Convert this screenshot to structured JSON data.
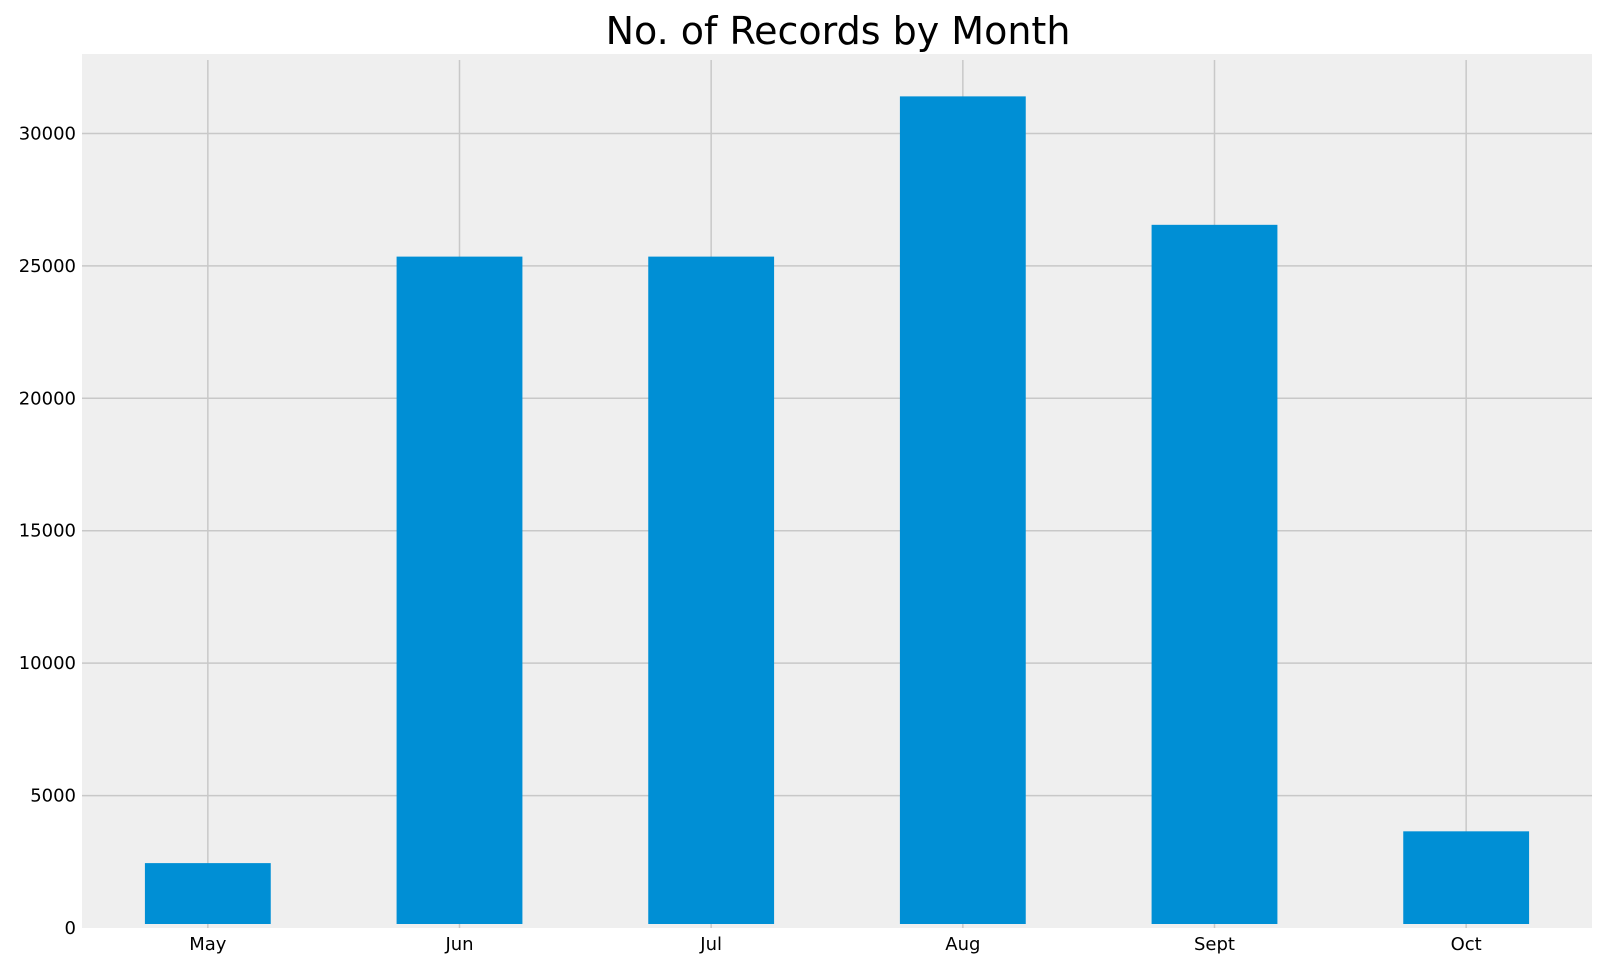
{
  "chart_data": {
    "type": "bar",
    "title": "No. of Records by Month",
    "categories": [
      "May",
      "Jun",
      "Jul",
      "Aug",
      "Sept",
      "Oct"
    ],
    "values": [
      2450,
      25350,
      25350,
      31400,
      26550,
      3650
    ],
    "xlabel": "",
    "ylabel": "",
    "ylim": [
      0,
      33000
    ],
    "yticks": [
      0,
      5000,
      10000,
      15000,
      20000,
      25000,
      30000
    ],
    "grid": true,
    "legend": "none"
  },
  "colors": {
    "bar": "#008fd5",
    "plot_background": "#efefef",
    "grid": "#c8c8c8",
    "page_background": "#ffffff"
  }
}
